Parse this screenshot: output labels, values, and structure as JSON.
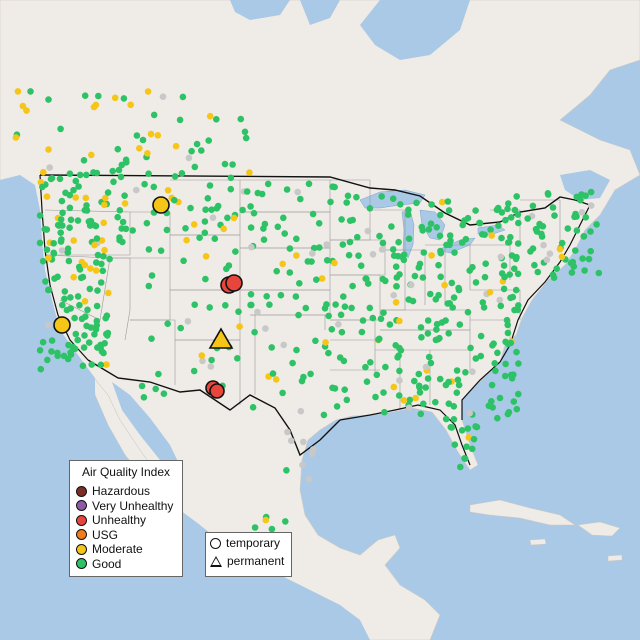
{
  "legend": {
    "title": "Air Quality Index",
    "categories": [
      {
        "label": "Hazardous",
        "color": "#7b2d26"
      },
      {
        "label": "Very Unhealthy",
        "color": "#8e5aa8"
      },
      {
        "label": "Unhealthy",
        "color": "#e8463c"
      },
      {
        "label": "USG",
        "color": "#f07c1a"
      },
      {
        "label": "Moderate",
        "color": "#f5c518"
      },
      {
        "label": "Good",
        "color": "#2ec266"
      }
    ]
  },
  "shape_legend": {
    "temporary": "temporary",
    "permanent": "permanent"
  },
  "colors": {
    "water": "#a9c9e6",
    "land": "#efebe6",
    "state_border": "#9a9a9a",
    "national_border": "#111111",
    "good": "#2ec266",
    "moderate": "#f5c518",
    "unhealthy": "#e8463c",
    "no_data": "#c8c8c8"
  },
  "notable_monitors": [
    {
      "name": "Montana monitor",
      "category": "Moderate",
      "type": "temporary"
    },
    {
      "name": "California coast monitor",
      "category": "Moderate",
      "type": "temporary"
    },
    {
      "name": "Colorado monitor 1",
      "category": "Unhealthy",
      "type": "temporary"
    },
    {
      "name": "Colorado monitor 2",
      "category": "Unhealthy",
      "type": "temporary"
    },
    {
      "name": "New Mexico monitor",
      "category": "Moderate",
      "type": "permanent"
    },
    {
      "name": "Southern New Mexico monitor 1",
      "category": "Unhealthy",
      "type": "temporary"
    },
    {
      "name": "Southern New Mexico monitor 2",
      "category": "Unhealthy",
      "type": "temporary"
    }
  ]
}
